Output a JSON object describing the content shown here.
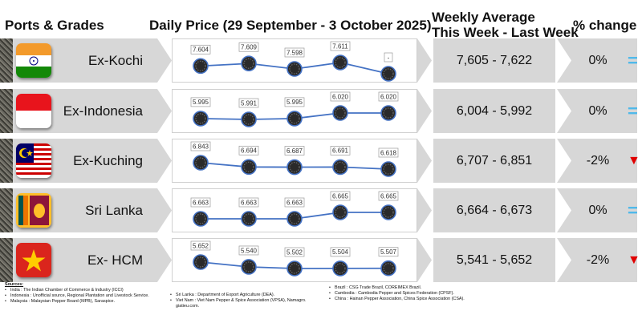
{
  "headers": {
    "ports": "Ports & Grades",
    "daily": "Daily Price (29 September - 3 October 2025)",
    "weekly_line1": "Weekly Average",
    "weekly_line2": "This Week - Last Week",
    "change": "% change"
  },
  "chart_data": {
    "type": "line",
    "title": "Daily Price (29 September - 3 October 2025)",
    "rows": [
      {
        "name": "Ex-Kochi",
        "flag": "india-flag",
        "values": [
          7.604,
          7.609,
          7.598,
          7.611,
          null
        ],
        "labels": [
          "7.604",
          "7.609",
          "7.598",
          "7.611",
          "-"
        ],
        "weekly": "7,605 - 7,622",
        "change": "0%",
        "indicator": "="
      },
      {
        "name": "Ex-Indonesia",
        "flag": "indonesia-flag",
        "values": [
          5.995,
          5.991,
          5.995,
          6.02,
          6.02
        ],
        "labels": [
          "5.995",
          "5.991",
          "5.995",
          "6.020",
          "6.020"
        ],
        "weekly": "6,004 - 5,992",
        "change": "0%",
        "indicator": "="
      },
      {
        "name": "Ex-Kuching",
        "flag": "malaysia-flag",
        "values": [
          6.843,
          6.694,
          6.687,
          6.691,
          6.618
        ],
        "labels": [
          "6.843",
          "6.694",
          "6.687",
          "6.691",
          "6.618"
        ],
        "weekly": "6,707 - 6,851",
        "change": "-2%",
        "indicator": "▼"
      },
      {
        "name": "Sri Lanka",
        "flag": "sri-lanka-flag",
        "values": [
          6.663,
          6.663,
          6.663,
          6.665,
          6.665
        ],
        "labels": [
          "6.663",
          "6.663",
          "6.663",
          "6.665",
          "6.665"
        ],
        "weekly": "6,664 - 6,673",
        "change": "0%",
        "indicator": "="
      },
      {
        "name": "Ex- HCM",
        "flag": "vietnam-flag",
        "values": [
          5.652,
          5.54,
          5.502,
          5.504,
          5.507
        ],
        "labels": [
          "5.652",
          "5.540",
          "5.502",
          "5.504",
          "5.507"
        ],
        "weekly": "5,541 - 5,652",
        "change": "-2%",
        "indicator": "▼"
      }
    ]
  },
  "colors": {
    "line": "#4472c4",
    "equal": "#4fb9ea",
    "down": "#e00000",
    "panel": "#d7d7d7"
  },
  "sources": {
    "title": "Sources:",
    "col1": [
      "India : The Indian Chamber of Commerce & Industry (ICCI)",
      "Indonesia : Unofficial source, Regional Plantation and Livestock Service.",
      "Malaysia : Malaysian Pepper Board (MPB), Saraspice."
    ],
    "col2": [
      "Sri Lanka : Department of Export Agriculture (DEA).",
      "Viet Nam : Viet Nam Pepper & Spice Association (VPSA), Namagro. giatieu.com."
    ],
    "col3": [
      "Brazil : CSG Trade Brazil, COREIMEX Brazil.",
      "Cambodia : Cambodia Pepper and Spices Federation (CPSF).",
      "China : Hainan Pepper Association, China Spice Association (CSA)."
    ]
  }
}
